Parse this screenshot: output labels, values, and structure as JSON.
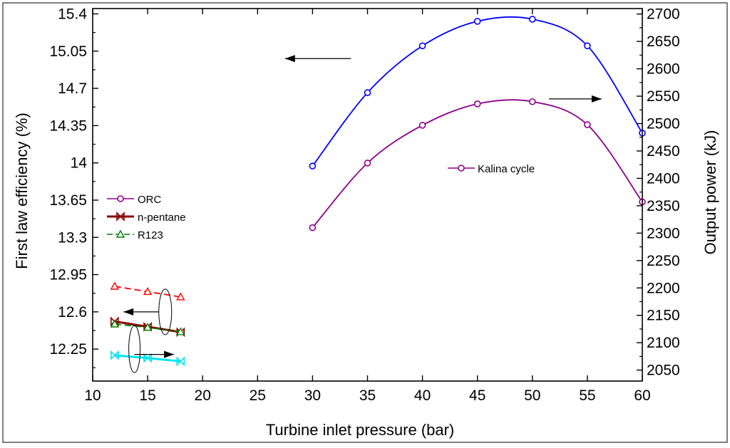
{
  "chart_data": {
    "type": "line",
    "xlabel": "Turbine inlet pressure  (bar)",
    "ylabel_left": "First law efficiency (%)",
    "ylabel_right": "Output power (kJ)",
    "xlim": [
      10,
      60
    ],
    "ylim_left": [
      11.95,
      15.45
    ],
    "ylim_right": [
      2030,
      2710
    ],
    "x_ticks": [
      "10",
      "15",
      "20",
      "25",
      "30",
      "35",
      "40",
      "45",
      "50",
      "55",
      "60"
    ],
    "y_left_ticks": [
      "12.25",
      "12.6",
      "12.95",
      "13.3",
      "13.65",
      "14",
      "14.35",
      "14.7",
      "15.05",
      "15.4"
    ],
    "y_right_ticks": [
      "2050",
      "2100",
      "2150",
      "2200",
      "2250",
      "2300",
      "2350",
      "2400",
      "2450",
      "2500",
      "2550",
      "2600",
      "2650",
      "2700"
    ],
    "series": [
      {
        "name": "Kalina cycle",
        "axis": "left",
        "color": "#0000ff",
        "marker": "circle",
        "dash": "solid",
        "x": [
          30,
          35,
          40,
          45,
          50,
          55,
          60
        ],
        "y": [
          13.97,
          14.66,
          15.1,
          15.33,
          15.35,
          15.1,
          14.28
        ]
      },
      {
        "name": "Kalina cycle",
        "axis": "right",
        "color": "#8b008b",
        "marker": "circle",
        "dash": "solid",
        "x": [
          30,
          35,
          40,
          45,
          50,
          55,
          60
        ],
        "y": [
          2310,
          2428,
          2497,
          2536,
          2540,
          2498,
          2357
        ]
      },
      {
        "name": "R123",
        "axis": "left",
        "color": "#ff0000",
        "marker": "triangle",
        "dash": "dashed",
        "x": [
          12,
          15,
          18
        ],
        "y": [
          12.84,
          12.79,
          12.74
        ]
      },
      {
        "name": "n-pentane",
        "axis": "left",
        "color": "#8b0000",
        "marker": "bowtie",
        "dash": "solid",
        "x": [
          12,
          15,
          18
        ],
        "y": [
          12.51,
          12.46,
          12.41
        ]
      },
      {
        "name": "R123",
        "axis": "right",
        "color": "#008000",
        "marker": "triangle",
        "dash": "dashed",
        "x": [
          12,
          15,
          18
        ],
        "y": [
          2134,
          2128,
          2120
        ]
      },
      {
        "name": "n-pentane",
        "axis": "right",
        "color": "#00e5ee",
        "marker": "bowtie",
        "dash": "solid",
        "x": [
          12,
          15,
          18
        ],
        "y": [
          2077,
          2072,
          2066
        ]
      }
    ],
    "legend_top_left": [
      {
        "label": "ORC",
        "color": "#8b008b",
        "marker": "circle",
        "dash": "solid"
      },
      {
        "label": "n-pentane",
        "color": "#8b0000",
        "marker": "bowtie",
        "dash": "solid"
      },
      {
        "label": "R123",
        "color": "#008000",
        "marker": "triangle",
        "dash": "dashed"
      }
    ],
    "legend_kalina": {
      "label": "Kalina cycle",
      "color": "#8b008b",
      "marker": "circle"
    }
  }
}
